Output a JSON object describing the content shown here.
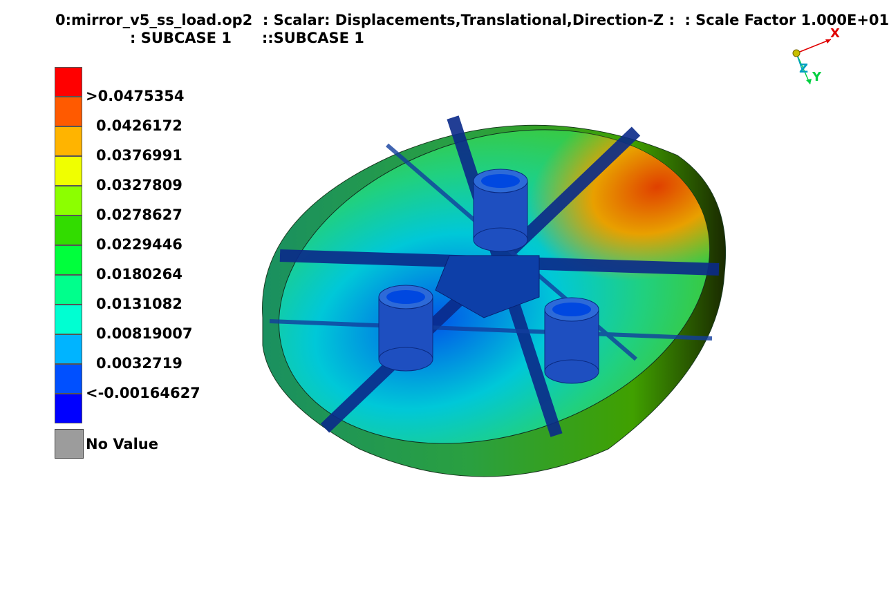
{
  "header": {
    "line1": "0:mirror_v5_ss_load.op2  : Scalar: Displacements,Translational,Direction-Z :  : Scale Factor 1.000E+01",
    "line2": ": SUBCASE 1      ::SUBCASE 1"
  },
  "legend": {
    "swatches": [
      "#ff0000",
      "#ff5a00",
      "#ffb400",
      "#f0ff00",
      "#8cff00",
      "#32dc00",
      "#00ff3c",
      "#00ff8c",
      "#00ffd2",
      "#00b4ff",
      "#0050ff",
      "#0000ff"
    ],
    "labels": [
      ">0.0475354",
      "0.0426172",
      "0.0376991",
      "0.0327809",
      "0.0278627",
      "0.0229446",
      "0.0180264",
      "0.0131082",
      "0.00819007",
      "0.0032719",
      "<-0.00164627"
    ],
    "no_value_label": "No Value",
    "no_value_color": "#9c9c9c"
  },
  "triad": {
    "x_label": "X",
    "y_label": "Y",
    "z_label": "Z",
    "x_color": "#e00000",
    "y_color": "#00d040",
    "z_color": "#00a0c0"
  }
}
